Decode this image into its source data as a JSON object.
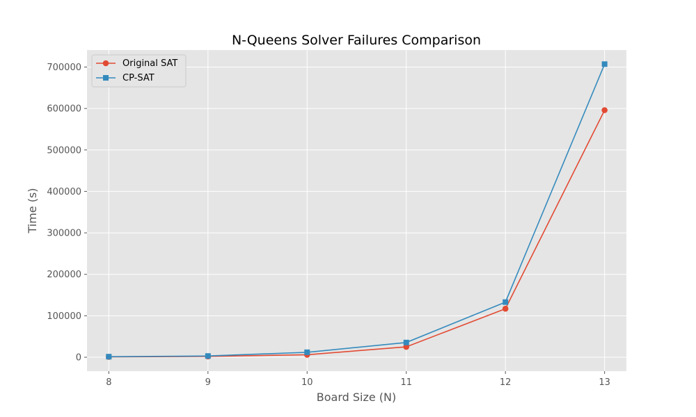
{
  "chart_data": {
    "type": "line",
    "title": "N-Queens Solver Failures Comparison",
    "xlabel": "Board Size (N)",
    "ylabel": "Time (s)",
    "x": [
      8,
      9,
      10,
      11,
      12,
      13
    ],
    "xlim": [
      7.78,
      13.22
    ],
    "ylim": [
      -33500,
      741000
    ],
    "yticks": [
      0,
      100000,
      200000,
      300000,
      400000,
      500000,
      600000,
      700000
    ],
    "grid": true,
    "legend_position": "top-left",
    "series": [
      {
        "name": "Original SAT",
        "marker": "circle",
        "color": "#E24A33",
        "values": [
          876,
          2000,
          6000,
          25000,
          117000,
          596000
        ]
      },
      {
        "name": "CP-SAT",
        "marker": "square",
        "color": "#348ABD",
        "values": [
          1400,
          3000,
          12000,
          35500,
          133000,
          707000
        ]
      }
    ]
  }
}
